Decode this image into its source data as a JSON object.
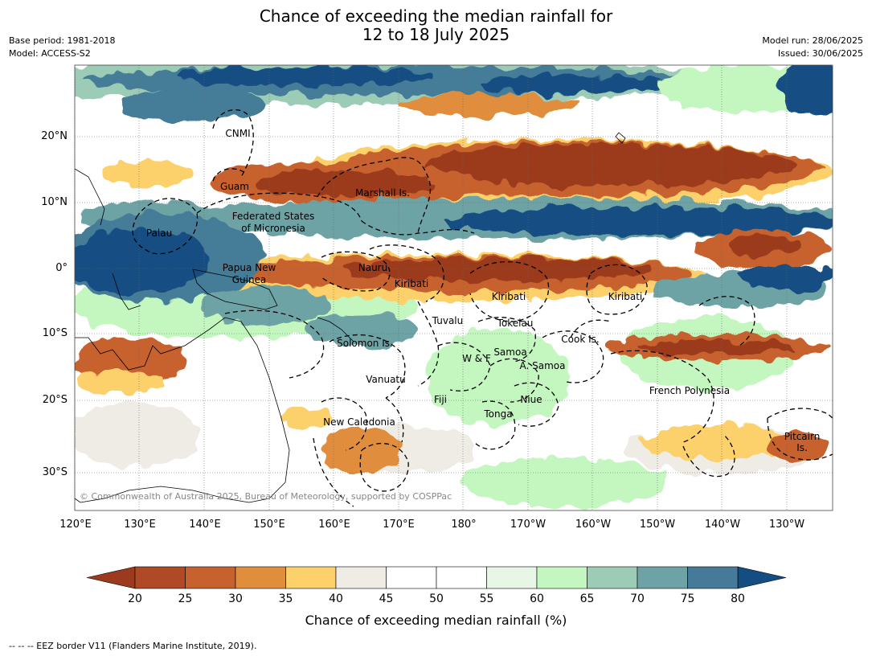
{
  "header": {
    "title_line1": "Chance of exceeding the median rainfall for",
    "title_line2": "12 to 18 July 2025",
    "base_period": "Base period: 1981-2018",
    "model": "Model: ACCESS-S2",
    "model_run": "Model run: 28/06/2025",
    "issued": "Issued: 30/06/2025"
  },
  "map": {
    "lat_ticks": [
      "20°N",
      "10°N",
      "0°",
      "10°S",
      "20°S",
      "30°S"
    ],
    "lon_ticks": [
      "120°E",
      "130°E",
      "140°E",
      "150°E",
      "160°E",
      "170°E",
      "180°",
      "170°W",
      "160°W",
      "150°W",
      "140°W",
      "130°W"
    ],
    "region_labels": [
      "CNMI",
      "Guam",
      "Marshall Is.",
      "Federated States",
      "of Micronesia",
      "Palau",
      "Papua New",
      "Guinea",
      "Nauru",
      "Kiribati",
      "Kiribati",
      "Kiribati",
      "Tuvalu",
      "Tokelau",
      "Cook Is.",
      "Solomon Is.",
      "W & F",
      "Samoa",
      "A. Samoa",
      "Vanuatu",
      "Fiji",
      "Niue",
      "Tonga",
      "French Polynesia",
      "New Caledonia",
      "Pitcairn",
      "Is."
    ],
    "copyright": "© Commonwealth of Australia 2025, Bureau of Meteorology, supported by COSPPac"
  },
  "colorbar": {
    "ticks": [
      "20",
      "25",
      "30",
      "35",
      "40",
      "45",
      "50",
      "55",
      "60",
      "65",
      "70",
      "75",
      "80"
    ],
    "colors": [
      "#9b3a1f",
      "#b04a26",
      "#c7622e",
      "#e08e3c",
      "#fcd06a",
      "#efece6",
      "#ffffff",
      "#ffffff",
      "#e8f7e5",
      "#c4f7c0",
      "#9ccbb6",
      "#6ea3a6",
      "#457b98",
      "#134d82"
    ],
    "label": "Chance of exceeding median rainfall (%)"
  },
  "footer": {
    "legend": "--  --  -- EEZ border V11 (Flanders Marine Institute, 2019)."
  }
}
